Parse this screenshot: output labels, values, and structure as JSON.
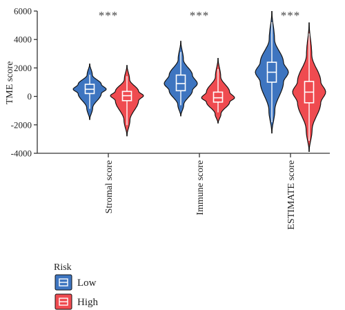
{
  "chart_data": {
    "type": "violin",
    "ylabel": "TME score",
    "ylim": [
      -4000,
      6000
    ],
    "yticks": [
      -4000,
      -2000,
      0,
      2000,
      4000,
      6000
    ],
    "categories": [
      "Stromal score",
      "Immune score",
      "ESTIMATE score"
    ],
    "significance": [
      "***",
      "***",
      "***"
    ],
    "legend": {
      "title": "Risk",
      "position": "bottom-left",
      "entries": [
        {
          "label": "Low",
          "color": "#3E75C0"
        },
        {
          "label": "High",
          "color": "#EF4B50"
        }
      ]
    },
    "grid": false,
    "series": [
      {
        "name": "Low",
        "color": "#3E75C0",
        "stats": [
          {
            "min": -1650,
            "q1": 200,
            "median": 500,
            "q3": 850,
            "max": 2300
          },
          {
            "min": -1400,
            "q1": 400,
            "median": 900,
            "q3": 1500,
            "max": 3900
          },
          {
            "min": -2600,
            "q1": 1000,
            "median": 1700,
            "q3": 2400,
            "max": 6000
          }
        ]
      },
      {
        "name": "High",
        "color": "#EF4B50",
        "stats": [
          {
            "min": -2800,
            "q1": -300,
            "median": 50,
            "q3": 350,
            "max": 2200
          },
          {
            "min": -1900,
            "q1": -400,
            "median": -100,
            "q3": 300,
            "max": 2700
          },
          {
            "min": -3900,
            "q1": -450,
            "median": 300,
            "q3": 1050,
            "max": 5200
          }
        ]
      }
    ]
  }
}
